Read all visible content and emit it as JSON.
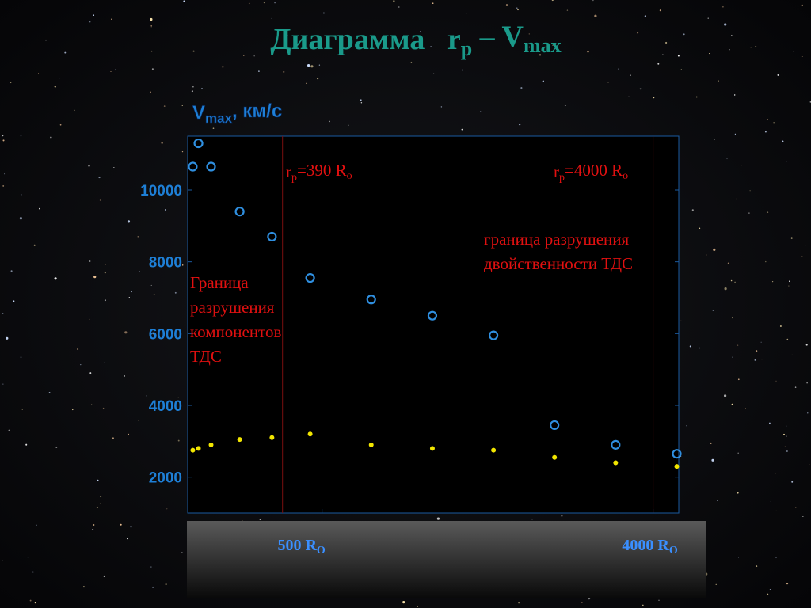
{
  "chart_data": {
    "type": "scatter",
    "title": [
      "Диаграмма   r",
      {
        "sub": "p"
      },
      " – V",
      {
        "sub": "max"
      }
    ],
    "y_label": [
      "V",
      {
        "sub": "max"
      },
      ", км/с"
    ],
    "x_scale": "log",
    "xlim": [
      215,
      4700
    ],
    "xticks": [
      {
        "value": 500,
        "label": [
          "500 R",
          {
            "sub": "O"
          }
        ]
      },
      {
        "value": 4000,
        "label": [
          "4000 R",
          {
            "sub": "O"
          }
        ]
      }
    ],
    "ylim": [
      1000,
      11500
    ],
    "yticks": [
      2000,
      4000,
      6000,
      8000,
      10000
    ],
    "grid": false,
    "x": [
      222,
      230,
      249,
      298,
      365,
      464,
      681,
      1000,
      1468,
      2154,
      3162,
      4642
    ],
    "series": [
      {
        "color": "#2f8fe0",
        "marker": "open-circle",
        "values": [
          10650,
          11300,
          10650,
          9400,
          8700,
          7550,
          6950,
          6500,
          5950,
          3450,
          2900,
          2650
        ]
      },
      {
        "color": "#f2e600",
        "marker": "dot",
        "values": [
          2750,
          2800,
          2900,
          3050,
          3100,
          3200,
          2900,
          2800,
          2750,
          2550,
          2400,
          2300
        ]
      }
    ],
    "vlines": [
      {
        "x": 390,
        "color": "#7a1010"
      },
      {
        "x": 4000,
        "color": "#7a1010"
      }
    ],
    "annotations": [
      {
        "parts": [
          "r",
          {
            "sub": "p"
          },
          "=390 R",
          {
            "sub": "o"
          }
        ]
      },
      {
        "parts": [
          "r",
          {
            "sub": "p"
          },
          "=4000 R",
          {
            "sub": "o"
          }
        ]
      },
      {
        "lines": [
          "граница разрушения",
          "двойственности ТДС"
        ]
      },
      {
        "lines": [
          "Граница",
          "разрушения",
          "компонентов",
          "ТДС"
        ]
      }
    ]
  }
}
